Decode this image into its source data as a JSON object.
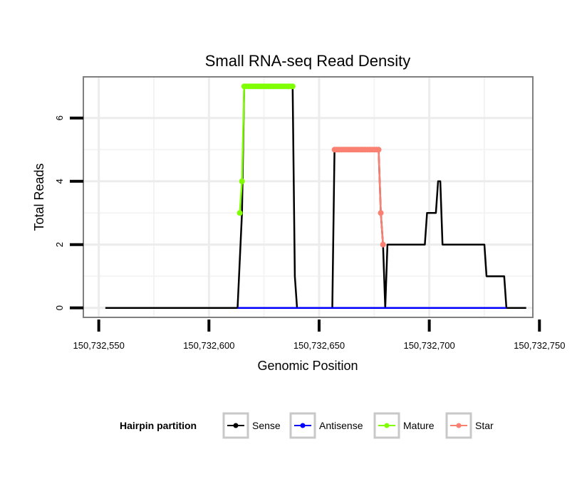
{
  "chart_data": {
    "type": "line",
    "title": "Small RNA-seq Read Density",
    "xlabel": "Genomic Position",
    "ylabel": "Total Reads",
    "xlim": [
      150732543,
      150732747
    ],
    "ylim": [
      -0.3,
      7.3
    ],
    "x_ticks": [
      150732550,
      150732600,
      150732650,
      150732700,
      150732750
    ],
    "x_tick_labels": [
      "150,732,550",
      "150,732,600",
      "150,732,650",
      "150,732,700",
      "150,732,750"
    ],
    "y_ticks": [
      0,
      2,
      4,
      6
    ],
    "y_tick_labels": [
      "0",
      "2",
      "4",
      "6"
    ],
    "grid": true,
    "legend": {
      "title": "Hairpin partition",
      "position": "bottom",
      "items": [
        {
          "label": "Sense",
          "color": "#000000"
        },
        {
          "label": "Antisense",
          "color": "#0000ff"
        },
        {
          "label": "Mature",
          "color": "#7fff00"
        },
        {
          "label": "Star",
          "color": "#fa8072"
        }
      ]
    },
    "series": [
      {
        "name": "Sense",
        "color": "#000000",
        "x": [
          150732553,
          150732613,
          150732615,
          150732616,
          150732638,
          150732639,
          150732640,
          150732656,
          150732657,
          150732677,
          150732678,
          150732679,
          150732680,
          150732681,
          150732698,
          150732699,
          150732703,
          150732704,
          150732705,
          150732706,
          150732715,
          150732725,
          150732726,
          150732734,
          150732735,
          150732744
        ],
        "y": [
          0,
          0,
          3,
          7,
          7,
          1,
          0,
          0,
          5,
          5,
          3,
          2,
          0,
          2,
          2,
          3,
          3,
          4,
          4,
          2,
          2,
          2,
          1,
          1,
          0,
          0
        ]
      },
      {
        "name": "Antisense",
        "color": "#0000ff",
        "x": [
          150732613,
          150732735
        ],
        "y": [
          0,
          0
        ]
      },
      {
        "name": "Mature",
        "color": "#7fff00",
        "x": [
          150732614,
          150732615,
          150732616,
          150732617,
          150732618,
          150732619,
          150732620,
          150732621,
          150732622,
          150732623,
          150732624,
          150732625,
          150732626,
          150732627,
          150732628,
          150732629,
          150732630,
          150732631,
          150732632,
          150732633,
          150732634,
          150732635,
          150732636,
          150732637,
          150732638
        ],
        "y": [
          3,
          4,
          7,
          7,
          7,
          7,
          7,
          7,
          7,
          7,
          7,
          7,
          7,
          7,
          7,
          7,
          7,
          7,
          7,
          7,
          7,
          7,
          7,
          7,
          7
        ]
      },
      {
        "name": "Star",
        "color": "#fa8072",
        "x": [
          150732657,
          150732658,
          150732659,
          150732660,
          150732661,
          150732662,
          150732663,
          150732664,
          150732665,
          150732666,
          150732667,
          150732668,
          150732669,
          150732670,
          150732671,
          150732672,
          150732673,
          150732674,
          150732675,
          150732676,
          150732677,
          150732678,
          150732679
        ],
        "y": [
          5,
          5,
          5,
          5,
          5,
          5,
          5,
          5,
          5,
          5,
          5,
          5,
          5,
          5,
          5,
          5,
          5,
          5,
          5,
          5,
          5,
          3,
          2
        ]
      }
    ]
  }
}
